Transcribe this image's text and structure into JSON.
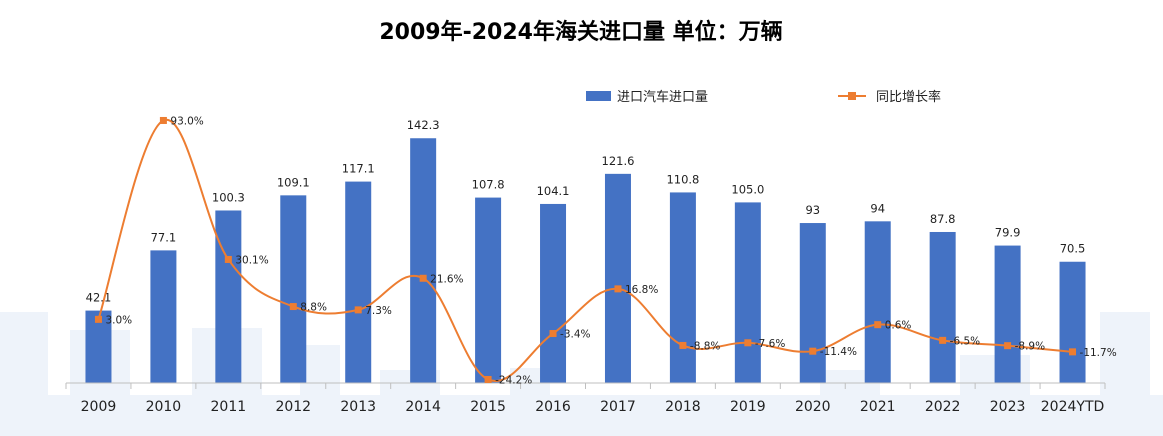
{
  "chart_data": {
    "type": "bar",
    "title": "2009年-2024年海关进口量  单位：万辆",
    "categories": [
      "2009",
      "2010",
      "2011",
      "2012",
      "2013",
      "2014",
      "2015",
      "2016",
      "2017",
      "2018",
      "2019",
      "2020",
      "2021",
      "2022",
      "2023",
      "2024YTD"
    ],
    "series": [
      {
        "name": "进口汽车进口量",
        "type": "bar",
        "color": "#4472C4",
        "values": [
          42.1,
          77.1,
          100.3,
          109.1,
          117.1,
          142.3,
          107.8,
          104.1,
          121.6,
          110.8,
          105.0,
          93,
          94,
          87.8,
          79.9,
          70.5
        ],
        "labels": [
          "42.1",
          "77.1",
          "100.3",
          "109.1",
          "117.1",
          "142.3",
          "107.8",
          "104.1",
          "121.6",
          "110.8",
          "105.0",
          "93",
          "94",
          "87.8",
          "79.9",
          "70.5"
        ]
      },
      {
        "name": "同比增长率",
        "type": "line",
        "color": "#ED7D31",
        "values": [
          3.0,
          93.0,
          30.1,
          8.8,
          7.3,
          21.6,
          -24.2,
          -3.4,
          16.8,
          -8.8,
          -7.6,
          -11.4,
          0.6,
          -6.5,
          -8.9,
          -11.7
        ],
        "labels": [
          "3.0%",
          "93.0%",
          "30.1%",
          "8.8%",
          "7.3%",
          "21.6%",
          "-24.2%",
          "-3.4%",
          "16.8%",
          "-8.8%",
          "-7.6%",
          "-11.4%",
          "0.6%",
          "-6.5%",
          "-8.9%",
          "-11.7%"
        ],
        "label_side": [
          "right",
          "right",
          "right",
          "right",
          "right",
          "right",
          "right",
          "right",
          "right",
          "right",
          "right",
          "right",
          "right",
          "right",
          "right",
          "right"
        ]
      }
    ],
    "ylim_bar": [
      0,
      160
    ],
    "ylim_line": [
      -45,
      100
    ],
    "grid": false,
    "legend_position": "top-right"
  }
}
